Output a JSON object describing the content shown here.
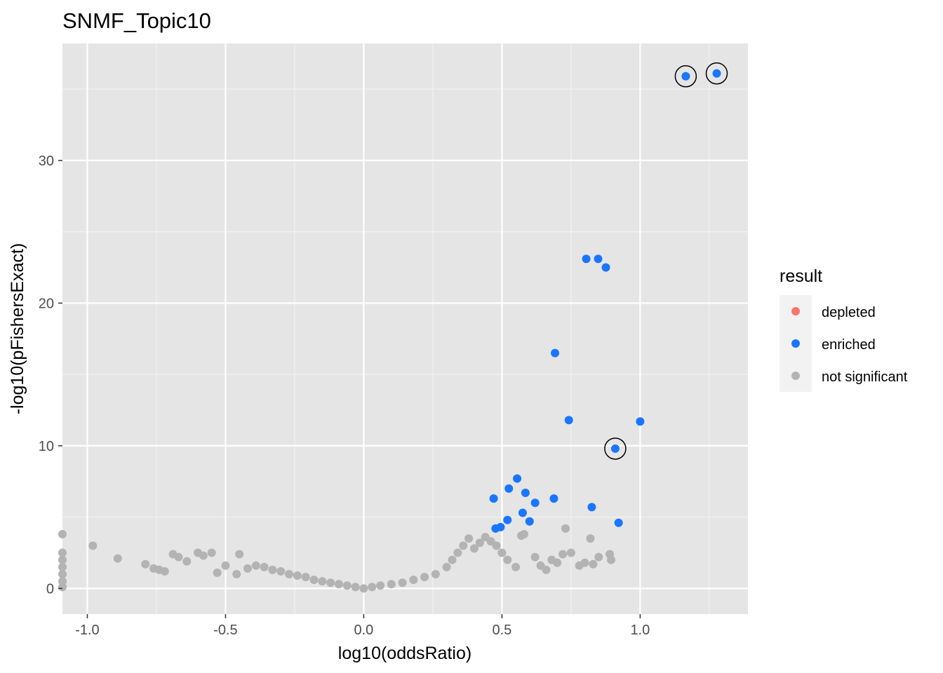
{
  "chart_data": {
    "type": "scatter",
    "title": "SNMF_Topic10",
    "xlabel": "log10(oddsRatio)",
    "ylabel": "-log10(pFishersExact)",
    "xlim": [
      -1.09,
      1.39
    ],
    "ylim": [
      -1.8,
      38.2
    ],
    "xticks": [
      -1.0,
      -0.5,
      0.0,
      0.5,
      1.0
    ],
    "xtick_labels": [
      "-1.0",
      "-0.5",
      "0.0",
      "0.5",
      "1.0"
    ],
    "yticks": [
      0,
      10,
      20,
      30
    ],
    "ytick_labels": [
      "0",
      "10",
      "20",
      "30"
    ],
    "grid": true,
    "legend": {
      "title": "result",
      "position": "right",
      "entries": [
        {
          "label": "depleted",
          "color": "#F8766D"
        },
        {
          "label": "enriched",
          "color": "#1A75FF"
        },
        {
          "label": "not significant",
          "color": "#B3B3B3"
        }
      ]
    },
    "series": [
      {
        "name": "enriched",
        "color": "#1A75FF",
        "points": [
          [
            1.165,
            35.9
          ],
          [
            1.277,
            36.1
          ],
          [
            0.805,
            23.1
          ],
          [
            0.848,
            23.1
          ],
          [
            0.876,
            22.5
          ],
          [
            0.692,
            16.5
          ],
          [
            0.742,
            11.8
          ],
          [
            1.0,
            11.7
          ],
          [
            0.91,
            9.8
          ],
          [
            0.555,
            7.7
          ],
          [
            0.525,
            7.0
          ],
          [
            0.585,
            6.7
          ],
          [
            0.47,
            6.3
          ],
          [
            0.688,
            6.3
          ],
          [
            0.62,
            6.0
          ],
          [
            0.825,
            5.7
          ],
          [
            0.575,
            5.3
          ],
          [
            0.52,
            4.8
          ],
          [
            0.6,
            4.7
          ],
          [
            0.922,
            4.6
          ],
          [
            0.495,
            4.3
          ],
          [
            0.477,
            4.2
          ]
        ]
      },
      {
        "name": "not significant",
        "color": "#B3B3B3",
        "points": [
          [
            -1.09,
            3.8
          ],
          [
            -1.09,
            2.5
          ],
          [
            -1.09,
            2.0
          ],
          [
            -1.09,
            1.5
          ],
          [
            -1.09,
            1.0
          ],
          [
            -1.09,
            0.5
          ],
          [
            -1.09,
            0.1
          ],
          [
            -0.98,
            3.0
          ],
          [
            -0.89,
            2.1
          ],
          [
            -0.79,
            1.7
          ],
          [
            -0.76,
            1.4
          ],
          [
            -0.74,
            1.3
          ],
          [
            -0.72,
            1.2
          ],
          [
            -0.69,
            2.4
          ],
          [
            -0.67,
            2.2
          ],
          [
            -0.64,
            1.9
          ],
          [
            -0.6,
            2.5
          ],
          [
            -0.58,
            2.3
          ],
          [
            -0.55,
            2.5
          ],
          [
            -0.53,
            1.1
          ],
          [
            -0.5,
            1.6
          ],
          [
            -0.46,
            1.0
          ],
          [
            -0.45,
            2.4
          ],
          [
            -0.42,
            1.4
          ],
          [
            -0.39,
            1.6
          ],
          [
            -0.36,
            1.5
          ],
          [
            -0.33,
            1.3
          ],
          [
            -0.3,
            1.2
          ],
          [
            -0.27,
            1.0
          ],
          [
            -0.24,
            0.9
          ],
          [
            -0.21,
            0.8
          ],
          [
            -0.18,
            0.6
          ],
          [
            -0.15,
            0.5
          ],
          [
            -0.12,
            0.4
          ],
          [
            -0.09,
            0.3
          ],
          [
            -0.06,
            0.2
          ],
          [
            -0.03,
            0.1
          ],
          [
            0.0,
            0.0
          ],
          [
            0.03,
            0.1
          ],
          [
            0.06,
            0.2
          ],
          [
            0.1,
            0.3
          ],
          [
            0.14,
            0.4
          ],
          [
            0.18,
            0.6
          ],
          [
            0.22,
            0.8
          ],
          [
            0.26,
            1.0
          ],
          [
            0.3,
            1.5
          ],
          [
            0.32,
            2.0
          ],
          [
            0.34,
            2.5
          ],
          [
            0.36,
            3.0
          ],
          [
            0.38,
            3.5
          ],
          [
            0.4,
            2.8
          ],
          [
            0.42,
            3.2
          ],
          [
            0.44,
            3.6
          ],
          [
            0.46,
            3.3
          ],
          [
            0.48,
            3.0
          ],
          [
            0.5,
            2.5
          ],
          [
            0.52,
            2.0
          ],
          [
            0.55,
            1.5
          ],
          [
            0.57,
            3.7
          ],
          [
            0.58,
            3.8
          ],
          [
            0.62,
            2.2
          ],
          [
            0.64,
            1.6
          ],
          [
            0.66,
            1.3
          ],
          [
            0.68,
            2.0
          ],
          [
            0.7,
            1.8
          ],
          [
            0.72,
            2.4
          ],
          [
            0.73,
            4.2
          ],
          [
            0.75,
            2.5
          ],
          [
            0.78,
            1.6
          ],
          [
            0.8,
            1.8
          ],
          [
            0.83,
            1.7
          ],
          [
            0.82,
            3.5
          ],
          [
            0.89,
            2.4
          ],
          [
            0.895,
            2.0
          ],
          [
            0.85,
            2.2
          ]
        ]
      },
      {
        "name": "depleted",
        "color": "#F8766D",
        "points": []
      }
    ],
    "highlighted_points": [
      [
        1.165,
        35.9
      ],
      [
        1.277,
        36.1
      ],
      [
        0.91,
        9.8
      ]
    ]
  }
}
